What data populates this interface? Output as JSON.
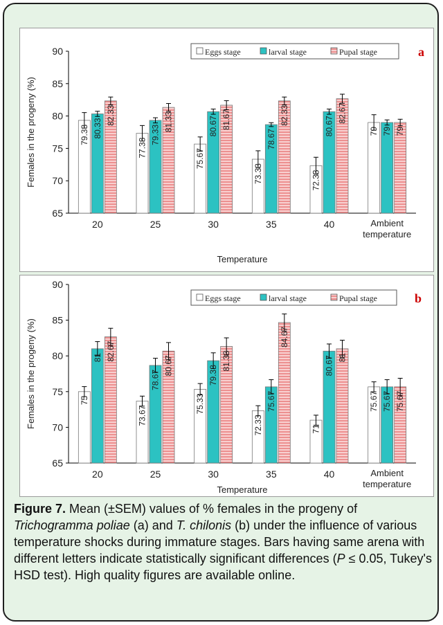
{
  "caption": {
    "figure_label": "Figure 7.",
    "text_1": " Mean (±SEM) values of % females in the progeny of ",
    "species_a": "Trichogramma poliae",
    "text_2": " (a) and ",
    "species_b": "T. chilonis",
    "text_3": " (b) under the influence of various temperature shocks during immature stages. Bars having same arena with different letters indicate statistically significant differences (",
    "p_symbol": "P",
    "text_4": " ≤ 0.05, Tukey's HSD test). High quality figures are available online."
  },
  "colors": {
    "frame_background": "#e6f3e6",
    "eggs_fill": "#ffffff",
    "larval_fill": "#2cc2c2",
    "pupal_fill": "#f8d0d0",
    "pupal_hatch": "#e04040",
    "panel_letter": "#cc0000"
  },
  "chart_data": [
    {
      "type": "bar",
      "panel_label": "a",
      "categories": [
        "20",
        "25",
        "30",
        "35",
        "40",
        "Ambient temperature"
      ],
      "series": [
        {
          "name": "Eggs stage",
          "values": [
            79.33,
            77.33,
            75.67,
            73.33,
            72.33,
            79
          ],
          "labels": [
            "79.33",
            "77.33",
            "75.67",
            "73.33",
            "72.33",
            "79"
          ],
          "sem": [
            1.2,
            1.2,
            1.1,
            1.3,
            1.3,
            1.2
          ]
        },
        {
          "name": "larval stage",
          "values": [
            80.33,
            79.33,
            80.67,
            78.67,
            80.67,
            79
          ],
          "labels": [
            "80.33",
            "79.33",
            "80.67",
            "78.67",
            "80.67",
            "79"
          ],
          "sem": [
            0.4,
            0.4,
            0.4,
            0.3,
            0.4,
            0.4
          ]
        },
        {
          "name": "Pupal stage",
          "values": [
            82.33,
            81.33,
            81.67,
            82.33,
            82.67,
            79
          ],
          "labels": [
            "82.33",
            "81.33",
            "81.67",
            "82.33",
            "82.67",
            "79"
          ],
          "sem": [
            0.6,
            0.6,
            0.7,
            0.6,
            0.7,
            0.5
          ]
        }
      ],
      "xlabel": "Temperature",
      "ylabel": "Females in the progeny (%)",
      "ylim": [
        65,
        90
      ],
      "yticks": [
        65,
        70,
        75,
        80,
        85,
        90
      ],
      "legend_position": "top-right"
    },
    {
      "type": "bar",
      "panel_label": "b",
      "categories": [
        "20",
        "25",
        "30",
        "35",
        "40",
        "Ambient temperature"
      ],
      "series": [
        {
          "name": "Eggs stage",
          "values": [
            75,
            73.67,
            75.33,
            72.33,
            71,
            75.67
          ],
          "labels": [
            "75",
            "73.67",
            "75.33",
            "72.33",
            "71",
            "75.67"
          ],
          "sem": [
            0.7,
            0.7,
            0.8,
            0.7,
            0.7,
            0.7
          ]
        },
        {
          "name": "larval stage",
          "values": [
            81,
            78.67,
            79.33,
            75.67,
            80.67,
            75.67
          ],
          "labels": [
            "81",
            "78.67",
            "79.33",
            "75.67",
            "80.67",
            "75.67"
          ],
          "sem": [
            1.0,
            1.0,
            1.1,
            1.0,
            1.0,
            1.0
          ]
        },
        {
          "name": "Pupal stage",
          "values": [
            82.67,
            80.67,
            81.33,
            84.67,
            81,
            75.67
          ],
          "labels": [
            "82.67",
            "80.67",
            "81.33",
            "84.67",
            "81",
            "75.67"
          ],
          "sem": [
            1.2,
            1.2,
            1.2,
            1.2,
            1.2,
            1.2
          ]
        }
      ],
      "xlabel": "Temperature",
      "ylabel": "Females in the progeny (%)",
      "ylim": [
        65,
        90
      ],
      "yticks": [
        65,
        70,
        75,
        80,
        85,
        90
      ],
      "legend_position": "top-right"
    }
  ]
}
